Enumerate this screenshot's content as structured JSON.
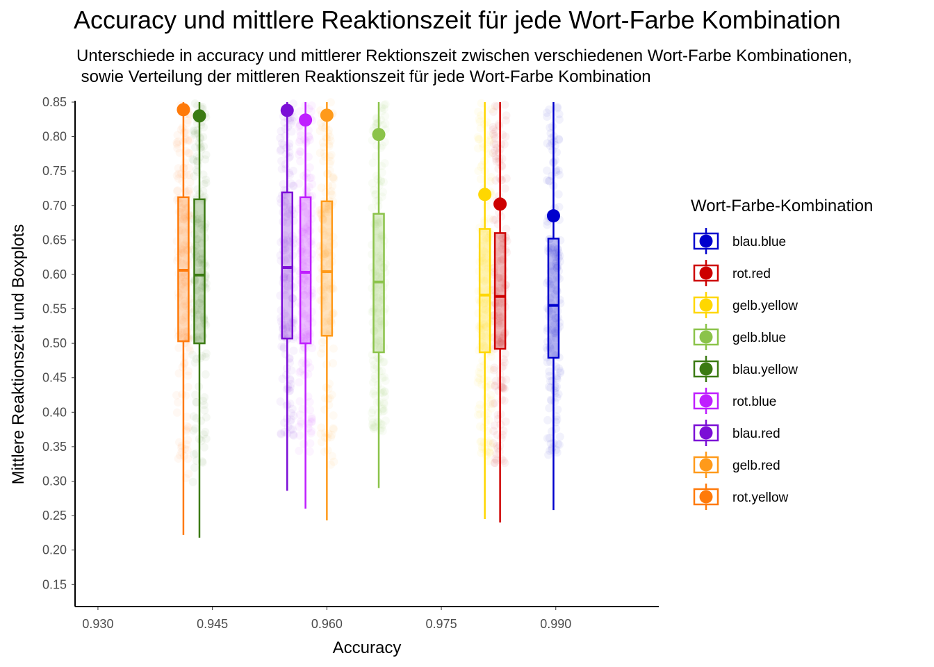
{
  "chart_data": {
    "type": "boxplot",
    "title": "Accuracy und mittlere Reaktionszeit für jede Wort-Farbe Kombination",
    "subtitle": "Unterschiede in accuracy und mittlerer Rektionszeit zwischen verschiedenen Wort-Farbe Kombinationen,\n sowie Verteilung der mittleren Reaktionszeit für jede Wort-Farbe Kombination",
    "xlabel": "Accuracy",
    "ylabel": "Mittlere Reaktionszeit und Boxplots",
    "xlim": [
      0.927,
      1.0035
    ],
    "ylim": [
      0.118,
      0.852
    ],
    "x_ticks": [
      "0.930",
      "0.945",
      "0.960",
      "0.975",
      "0.990"
    ],
    "y_ticks": [
      "0.15",
      "0.20",
      "0.25",
      "0.30",
      "0.35",
      "0.40",
      "0.45",
      "0.50",
      "0.55",
      "0.60",
      "0.65",
      "0.70",
      "0.75",
      "0.80",
      "0.85"
    ],
    "grid": false,
    "legend": {
      "title": "Wort-Farbe-Kombination",
      "position": "right"
    },
    "series": [
      {
        "name": "blau.blue",
        "color": "#0000CD",
        "accuracy": 0.9897,
        "mean_rt": 0.685,
        "box": {
          "whisker_low": 0.258,
          "q1": 0.479,
          "median": 0.555,
          "q3": 0.652,
          "whisker_high": 0.85
        }
      },
      {
        "name": "rot.red",
        "color": "#CD0000",
        "accuracy": 0.9827,
        "mean_rt": 0.702,
        "box": {
          "whisker_low": 0.24,
          "q1": 0.492,
          "median": 0.568,
          "q3": 0.66,
          "whisker_high": 0.85
        }
      },
      {
        "name": "gelb.yellow",
        "color": "#FFD700",
        "accuracy": 0.9807,
        "mean_rt": 0.716,
        "box": {
          "whisker_low": 0.245,
          "q1": 0.487,
          "median": 0.57,
          "q3": 0.666,
          "whisker_high": 0.85
        }
      },
      {
        "name": "gelb.blue",
        "color": "#8BC34A",
        "accuracy": 0.9668,
        "mean_rt": 0.803,
        "box": {
          "whisker_low": 0.29,
          "q1": 0.487,
          "median": 0.589,
          "q3": 0.688,
          "whisker_high": 0.85
        }
      },
      {
        "name": "blau.yellow",
        "color": "#3B7A12",
        "accuracy": 0.9433,
        "mean_rt": 0.83,
        "box": {
          "whisker_low": 0.218,
          "q1": 0.5,
          "median": 0.599,
          "q3": 0.709,
          "whisker_high": 0.85
        }
      },
      {
        "name": "rot.blue",
        "color": "#BF1EFF",
        "accuracy": 0.9572,
        "mean_rt": 0.824,
        "box": {
          "whisker_low": 0.26,
          "q1": 0.5,
          "median": 0.603,
          "q3": 0.712,
          "whisker_high": 0.85
        }
      },
      {
        "name": "blau.red",
        "color": "#7B0FD6",
        "accuracy": 0.9548,
        "mean_rt": 0.838,
        "box": {
          "whisker_low": 0.286,
          "q1": 0.507,
          "median": 0.61,
          "q3": 0.719,
          "whisker_high": 0.85
        }
      },
      {
        "name": "gelb.red",
        "color": "#FF9A1A",
        "accuracy": 0.96,
        "mean_rt": 0.831,
        "box": {
          "whisker_low": 0.243,
          "q1": 0.511,
          "median": 0.604,
          "q3": 0.706,
          "whisker_high": 0.85
        }
      },
      {
        "name": "rot.yellow",
        "color": "#FF7A0A",
        "accuracy": 0.9412,
        "mean_rt": 0.839,
        "box": {
          "whisker_low": 0.222,
          "q1": 0.503,
          "median": 0.606,
          "q3": 0.712,
          "whisker_high": 0.85
        }
      }
    ]
  }
}
